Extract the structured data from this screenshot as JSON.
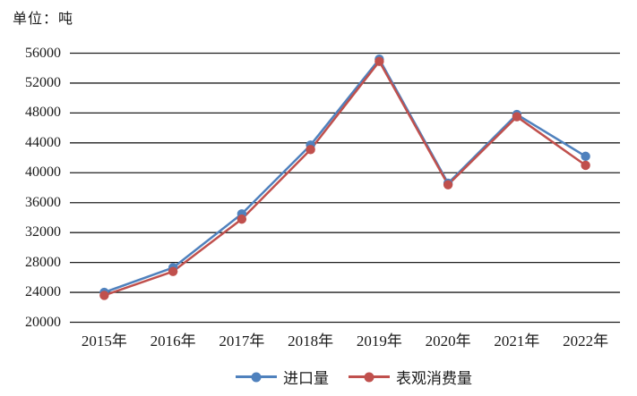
{
  "unit_label": "单位：吨",
  "colors": {
    "grid": "#1f1f1f",
    "text": "#1a1a1a",
    "background": "#ffffff"
  },
  "legend": {
    "items": [
      "进口量",
      "表观消费量"
    ]
  },
  "chart_data": {
    "type": "line",
    "title": "",
    "unit": "单位：吨",
    "categories": [
      "2015年",
      "2016年",
      "2017年",
      "2018年",
      "2019年",
      "2020年",
      "2021年",
      "2022年"
    ],
    "series": [
      {
        "name": "进口量",
        "color": "#4F81BD",
        "marker": "circle",
        "values": [
          24000,
          27300,
          34500,
          43700,
          55200,
          38600,
          47800,
          42200
        ]
      },
      {
        "name": "表观消费量",
        "color": "#C0504D",
        "marker": "circle",
        "values": [
          23600,
          26800,
          33800,
          43100,
          54900,
          38400,
          47500,
          41000
        ]
      }
    ],
    "ylim": [
      20000,
      56000
    ],
    "ytick_step": 4000,
    "yticks": [
      56000,
      52000,
      48000,
      44000,
      40000,
      36000,
      32000,
      28000,
      24000,
      20000
    ],
    "grid": "horizontal-only",
    "legend_position": "bottom-center"
  }
}
